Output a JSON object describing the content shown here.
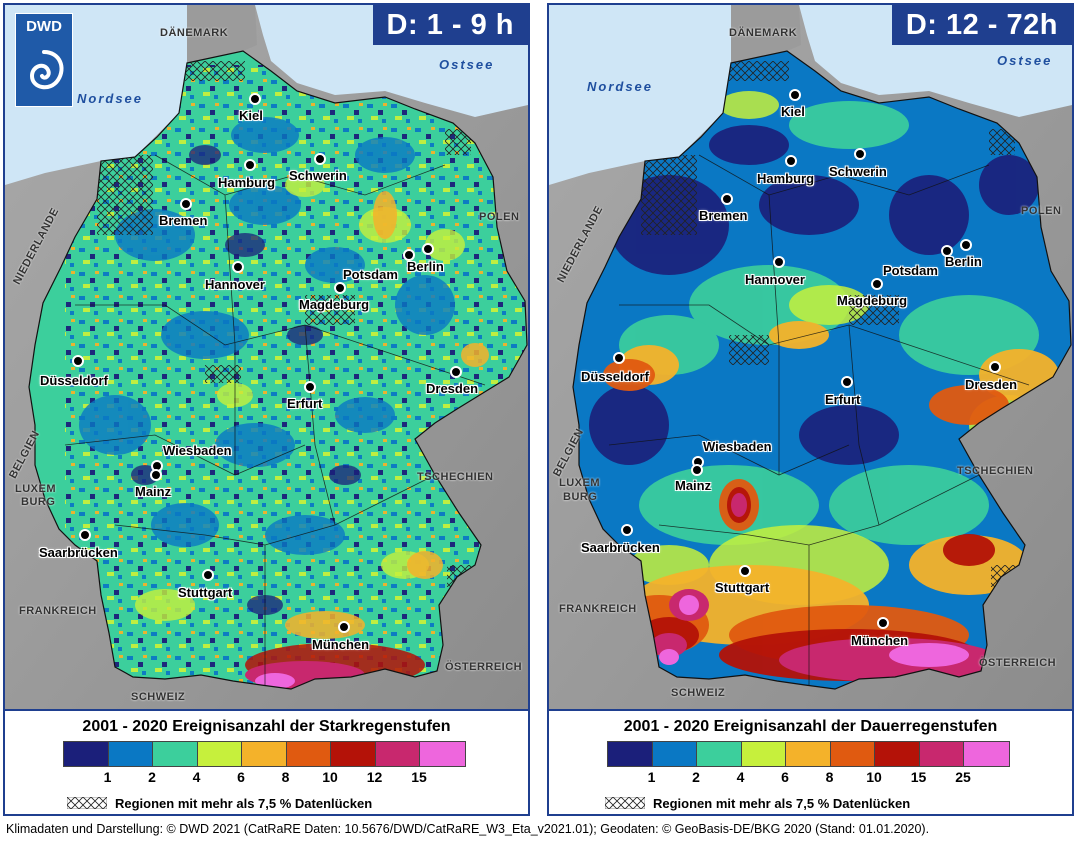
{
  "logo": {
    "text": "DWD"
  },
  "panels": [
    {
      "duration": "D: 1 - 9 h",
      "legend_title": "2001 - 2020 Ereignisanzahl der Starkregenstufen",
      "tick_labels": [
        "1",
        "2",
        "4",
        "6",
        "8",
        "10",
        "12",
        "15"
      ],
      "colors": [
        "#1b1f7a",
        "#0a78c4",
        "#3ccf9c",
        "#c6f03c",
        "#f4b22a",
        "#e05a10",
        "#b41208",
        "#c8286e",
        "#ee66dd"
      ],
      "gap_note": "Regionen mit mehr als 7,5 % Datenlücken",
      "cities": {
        "kiel": "Kiel",
        "hamburg": "Hamburg",
        "schwerin": "Schwerin",
        "bremen": "Bremen",
        "berlin": "Berlin",
        "potsdam": "Potsdam",
        "hannover": "Hannover",
        "magdeburg": "Magdeburg",
        "duesseldorf": "Düsseldorf",
        "dresden": "Dresden",
        "erfurt": "Erfurt",
        "wiesbaden": "Wiesbaden",
        "mainz": "Mainz",
        "saarbruecken": "Saarbrücken",
        "stuttgart": "Stuttgart",
        "muenchen": "München"
      },
      "countries": {
        "daenemark": "DÄNEMARK",
        "polen": "POLEN",
        "niederlande": "NIEDERLANDE",
        "belgien": "BELGIEN",
        "luxemburg1": "LUXEM",
        "luxemburg2": "BURG",
        "tschechien": "TSCHECHIEN",
        "frankreich": "FRANKREICH",
        "oesterreich": "ÖSTERREICH",
        "schweiz": "SCHWEIZ"
      },
      "seas": {
        "nordsee": "Nordsee",
        "ostsee": "Ostsee"
      }
    },
    {
      "duration": "D: 12 - 72h",
      "legend_title": "2001 - 2020 Ereignisanzahl der Dauerregenstufen",
      "tick_labels": [
        "1",
        "2",
        "4",
        "6",
        "8",
        "10",
        "15",
        "25"
      ],
      "colors": [
        "#1b1f7a",
        "#0a78c4",
        "#3ccf9c",
        "#c6f03c",
        "#f4b22a",
        "#e05a10",
        "#b41208",
        "#c8286e",
        "#ee66dd"
      ],
      "gap_note": "Regionen mit mehr als 7,5 % Datenlücken",
      "cities": {
        "kiel": "Kiel",
        "hamburg": "Hamburg",
        "schwerin": "Schwerin",
        "bremen": "Bremen",
        "berlin": "Berlin",
        "potsdam": "Potsdam",
        "hannover": "Hannover",
        "magdeburg": "Magdeburg",
        "duesseldorf": "Düsseldorf",
        "dresden": "Dresden",
        "erfurt": "Erfurt",
        "wiesbaden": "Wiesbaden",
        "mainz": "Mainz",
        "saarbruecken": "Saarbrücken",
        "stuttgart": "Stuttgart",
        "muenchen": "München"
      },
      "countries": {
        "daenemark": "DÄNEMARK",
        "polen": "POLEN",
        "niederlande": "NIEDERLANDE",
        "belgien": "BELGIEN",
        "luxemburg1": "LUXEM",
        "luxemburg2": "BURG",
        "tschechien": "TSCHECHIEN",
        "frankreich": "FRANKREICH",
        "oesterreich": "ÖSTERREICH",
        "schweiz": "SCHWEIZ"
      },
      "seas": {
        "nordsee": "Nordsee",
        "ostsee": "Ostsee"
      }
    }
  ],
  "footer": "Klimadaten und Darstellung: © DWD 2021 (CatRaRE Daten: 10.5676/DWD/CatRaRE_W3_Eta_v2021.01); Geodaten: © GeoBasis-DE/BKG 2020 (Stand: 01.01.2020)."
}
